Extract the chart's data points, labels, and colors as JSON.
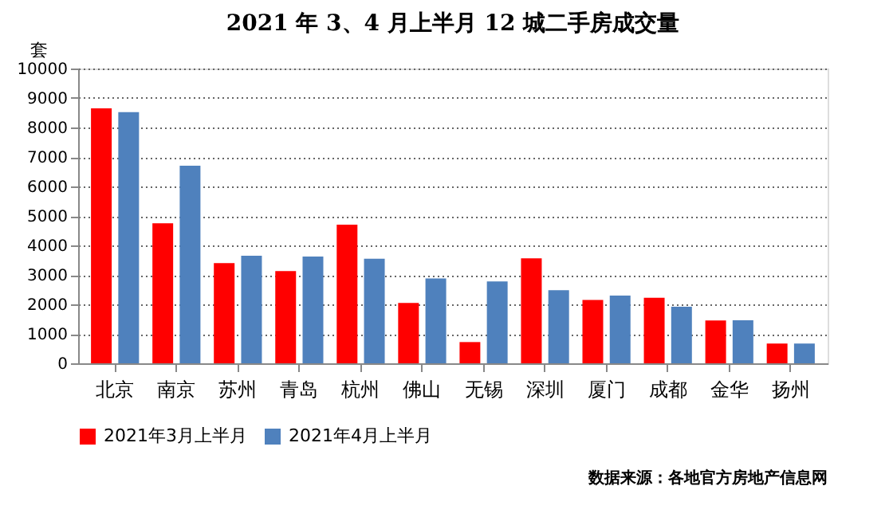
{
  "chart_data": {
    "type": "bar",
    "title": "2021 年 3、4 月上半月 12 城二手房成交量",
    "ylabel": "套",
    "categories": [
      "北京",
      "南京",
      "苏州",
      "青岛",
      "杭州",
      "佛山",
      "无锡",
      "深圳",
      "厦门",
      "成都",
      "金华",
      "扬州"
    ],
    "series": [
      {
        "name": "2021年3月上半月",
        "color": "#ff0000",
        "values": [
          8650,
          4750,
          3400,
          3130,
          4700,
          2050,
          720,
          3560,
          2150,
          2220,
          1450,
          670
        ]
      },
      {
        "name": "2021年4月上半月",
        "color": "#4f81bd",
        "values": [
          8520,
          6700,
          3650,
          3620,
          3550,
          2880,
          2780,
          2480,
          2300,
          1920,
          1460,
          670
        ]
      }
    ],
    "ylim": [
      0,
      10000
    ],
    "yticks": [
      0,
      1000,
      2000,
      3000,
      4000,
      5000,
      6000,
      7000,
      8000,
      9000,
      10000
    ],
    "grid": "y",
    "legend": "bottom",
    "annotations": [
      "数据来源：各地官方房地产信息网"
    ]
  }
}
